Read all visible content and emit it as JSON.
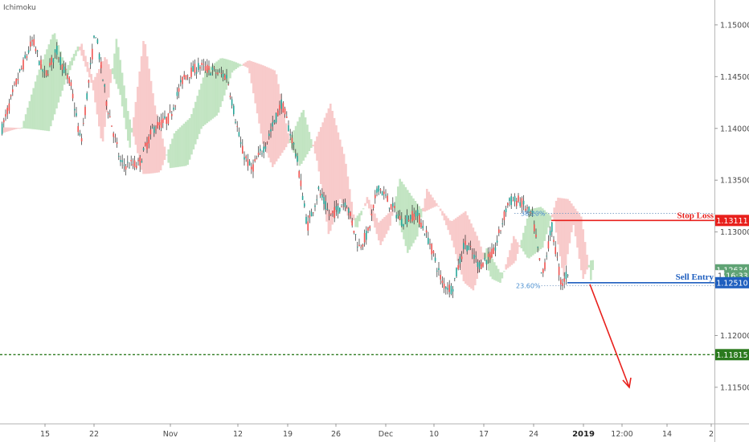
{
  "indicator_label": "Ichimoku",
  "chart_data": {
    "type": "candlestick",
    "title": "",
    "indicators": [
      "Ichimoku"
    ],
    "y_ticks": [
      1.115,
      1.12,
      1.125,
      1.13,
      1.135,
      1.14,
      1.145,
      1.15
    ],
    "y_tick_labels": [
      "1.11500",
      "1.12000",
      "1.12500",
      "1.13000",
      "1.13500",
      "1.14000",
      "1.14500",
      "1.15000"
    ],
    "ylim": [
      1.1115,
      1.1524
    ],
    "x_ticks": [
      "15",
      "22",
      "Nov",
      "12",
      "19",
      "26",
      "Dec",
      "10",
      "17",
      "24",
      "2019",
      "12:00",
      "14",
      "2"
    ],
    "price_tags": [
      {
        "label": "1.13111",
        "value": 1.13111,
        "color": "#e8201c"
      },
      {
        "label": "1.12634",
        "value": 1.12634,
        "color": "#5fa374"
      },
      {
        "label": "16:33",
        "value": 1.12577,
        "color": "#5fa374",
        "prefix": "1"
      },
      {
        "label": "1.12510",
        "value": 1.1251,
        "color": "#1f5fbf"
      },
      {
        "label": "1.11815",
        "value": 1.11815,
        "color": "#2b7a1e"
      }
    ],
    "levels": [
      {
        "label": "Stop Loss",
        "value": 1.13111,
        "color": "#e8201c"
      },
      {
        "label": "Sell Entry",
        "value": 1.1251,
        "color": "#1f5fbf"
      }
    ],
    "target_level": {
      "value": 1.11815,
      "color": "#2b7a1e"
    },
    "fib_levels": [
      {
        "label": "38.20%",
        "value": 1.1318
      },
      {
        "label": "23.60%",
        "value": 1.1248
      }
    ],
    "colors": {
      "up": "#26a69a",
      "down": "#ef5350",
      "wick": "#2a2a2a",
      "cloud_bull": "#b9e0b9",
      "cloud_bear": "#f7c2c2",
      "arrow": "#e8201c"
    }
  }
}
